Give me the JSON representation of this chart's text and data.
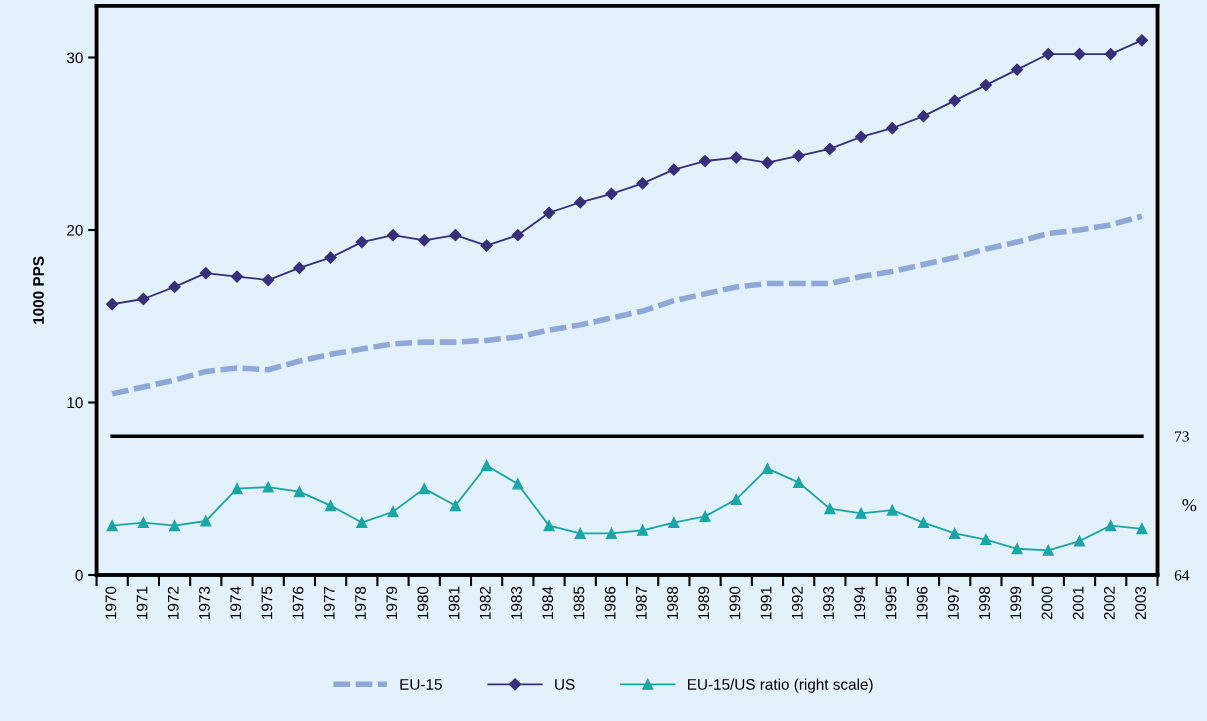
{
  "chart_data": {
    "type": "line",
    "ylabel": "1000 PPS",
    "y2label": "%",
    "categories": [
      "1970",
      "1971",
      "1972",
      "1973",
      "1974",
      "1975",
      "1976",
      "1977",
      "1978",
      "1979",
      "1980",
      "1981",
      "1982",
      "1983",
      "1984",
      "1985",
      "1986",
      "1987",
      "1988",
      "1989",
      "1990",
      "1991",
      "1992",
      "1993",
      "1994",
      "1995",
      "1996",
      "1997",
      "1998",
      "1999",
      "2000",
      "2001",
      "2002",
      "2003"
    ],
    "series": [
      {
        "name": "EU-15",
        "color": "#8fa8d8",
        "line_style": "dashed",
        "marker": "none",
        "values": [
          10.5,
          10.9,
          11.3,
          11.8,
          12.0,
          11.9,
          12.4,
          12.8,
          13.1,
          13.4,
          13.5,
          13.5,
          13.6,
          13.8,
          14.2,
          14.5,
          14.9,
          15.3,
          15.9,
          16.3,
          16.7,
          16.9,
          16.9,
          16.9,
          17.3,
          17.6,
          18.0,
          18.4,
          18.9,
          19.3,
          19.8,
          20.0,
          20.3,
          20.8
        ]
      },
      {
        "name": "US",
        "color": "#36307a",
        "line_style": "solid",
        "marker": "diamond",
        "values": [
          15.7,
          16.0,
          16.7,
          17.5,
          17.3,
          17.1,
          17.8,
          18.4,
          19.3,
          19.7,
          19.4,
          19.7,
          19.1,
          19.7,
          21.0,
          21.6,
          22.1,
          22.7,
          23.5,
          24.0,
          24.2,
          23.9,
          24.3,
          24.7,
          25.4,
          25.9,
          26.6,
          27.5,
          28.4,
          29.3,
          30.2,
          30.2,
          30.2,
          31.0
        ]
      },
      {
        "name": "EU-15/US ratio (right scale)",
        "color": "#1aa6a6",
        "line_style": "solid",
        "marker": "triangle",
        "axis": "y2",
        "values": [
          67.2,
          67.4,
          67.2,
          67.5,
          69.6,
          69.7,
          69.4,
          68.5,
          67.4,
          68.1,
          69.6,
          68.5,
          71.1,
          69.9,
          67.2,
          66.7,
          66.7,
          66.9,
          67.4,
          67.8,
          68.9,
          70.9,
          70.0,
          68.3,
          68.0,
          68.2,
          67.4,
          66.7,
          66.3,
          65.7,
          65.6,
          66.2,
          67.2,
          67.0
        ]
      }
    ],
    "ylim": [
      0,
      33
    ],
    "yticks": [
      0,
      10,
      20,
      30
    ],
    "y2lim": [
      64,
      100.9
    ],
    "y2ticks": [
      64,
      73
    ],
    "ref_lines": [
      {
        "axis": "y2",
        "value": 73,
        "label": null,
        "color": "#000000"
      }
    ],
    "grid": false,
    "legend": "bottom"
  }
}
